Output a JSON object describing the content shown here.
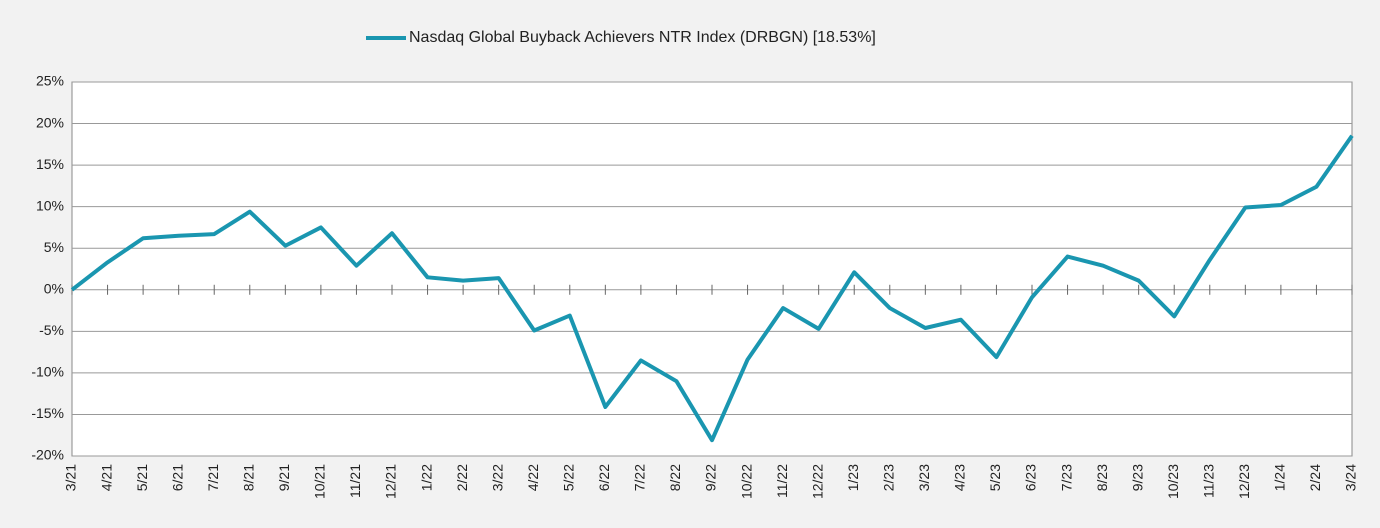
{
  "chart_data": {
    "type": "line",
    "categories": [
      "3/21",
      "4/21",
      "5/21",
      "6/21",
      "7/21",
      "8/21",
      "9/21",
      "10/21",
      "11/21",
      "12/21",
      "1/22",
      "2/22",
      "3/22",
      "4/22",
      "5/22",
      "6/22",
      "7/22",
      "8/22",
      "9/22",
      "10/22",
      "11/22",
      "12/22",
      "1/23",
      "2/23",
      "3/23",
      "4/23",
      "5/23",
      "6/23",
      "7/23",
      "8/23",
      "9/23",
      "10/23",
      "11/23",
      "12/23",
      "1/24",
      "2/24",
      "3/24"
    ],
    "series": [
      {
        "name": "Nasdaq Global Buyback Achievers NTR Index (DRBGN) [18.53%]",
        "color": "#1a96b0",
        "values": [
          0,
          3.3,
          6.2,
          6.5,
          6.7,
          9.4,
          5.3,
          7.5,
          2.9,
          6.8,
          1.5,
          1.1,
          1.4,
          -4.9,
          -3.1,
          -14.1,
          -8.5,
          -11.0,
          -18.1,
          -8.4,
          -2.2,
          -4.7,
          2.1,
          -2.2,
          -4.6,
          -3.6,
          -8.1,
          -0.9,
          4.0,
          2.9,
          1.1,
          -3.2,
          3.6,
          9.9,
          10.2,
          12.4,
          18.53
        ]
      }
    ],
    "ylim": [
      -20,
      25
    ],
    "yticks": [
      {
        "value": -20,
        "label": "-20%"
      },
      {
        "value": -15,
        "label": "-15%"
      },
      {
        "value": -10,
        "label": "-10%"
      },
      {
        "value": -5,
        "label": "-5%"
      },
      {
        "value": 0,
        "label": "0%"
      },
      {
        "value": 5,
        "label": "5%"
      },
      {
        "value": 10,
        "label": "10%"
      },
      {
        "value": 15,
        "label": "15%"
      },
      {
        "value": 20,
        "label": "20%"
      },
      {
        "value": 25,
        "label": "25%"
      }
    ],
    "grid": true,
    "legend": "top"
  }
}
